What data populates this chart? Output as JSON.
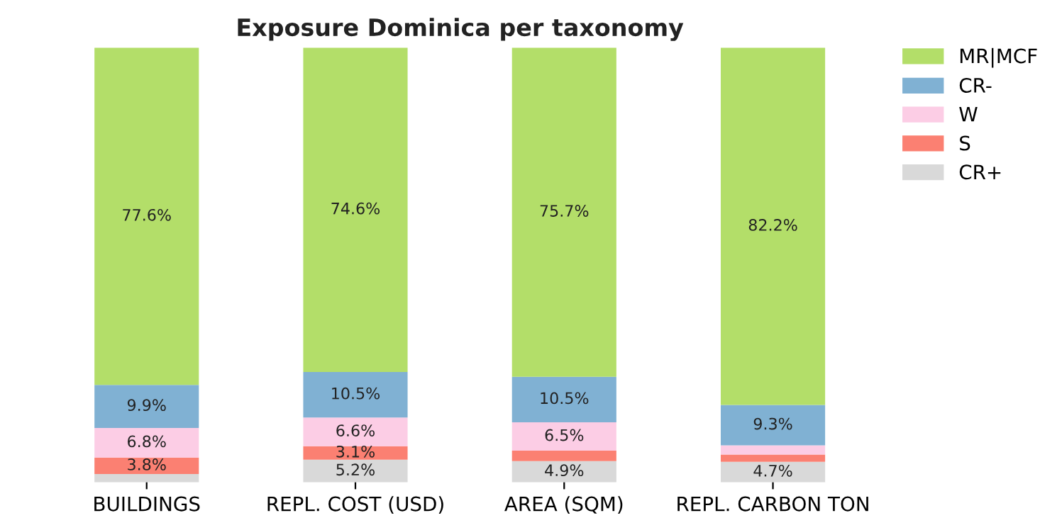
{
  "chart_data": {
    "type": "bar",
    "stacked": true,
    "title": "Exposure Dominica per taxonomy",
    "categories": [
      "BUILDINGS",
      "REPL. COST (USD)",
      "AREA (SQM)",
      "REPL. CARBON TON"
    ],
    "series": [
      {
        "name": "CR+",
        "color": "#d9d9d9",
        "values": [
          1.9,
          5.2,
          4.9,
          4.7
        ],
        "value_labels": [
          null,
          "5.2%",
          "4.9%",
          "4.7%"
        ]
      },
      {
        "name": "S",
        "color": "#fb8072",
        "values": [
          3.8,
          3.1,
          2.4,
          1.7
        ],
        "value_labels": [
          "3.8%",
          "3.1%",
          null,
          null
        ]
      },
      {
        "name": "W",
        "color": "#fccde5",
        "values": [
          6.8,
          6.6,
          6.5,
          2.1
        ],
        "value_labels": [
          "6.8%",
          "6.6%",
          "6.5%",
          null
        ]
      },
      {
        "name": "CR-",
        "color": "#80b1d3",
        "values": [
          9.9,
          10.5,
          10.5,
          9.3
        ],
        "value_labels": [
          "9.9%",
          "10.5%",
          "10.5%",
          "9.3%"
        ]
      },
      {
        "name": "MR|MCF",
        "color": "#b3de69",
        "values": [
          77.6,
          74.6,
          75.7,
          82.2
        ],
        "value_labels": [
          "77.6%",
          "74.6%",
          "75.7%",
          "82.2%"
        ]
      }
    ],
    "legend": "top right",
    "grid": false,
    "tick_labels": "x"
  }
}
